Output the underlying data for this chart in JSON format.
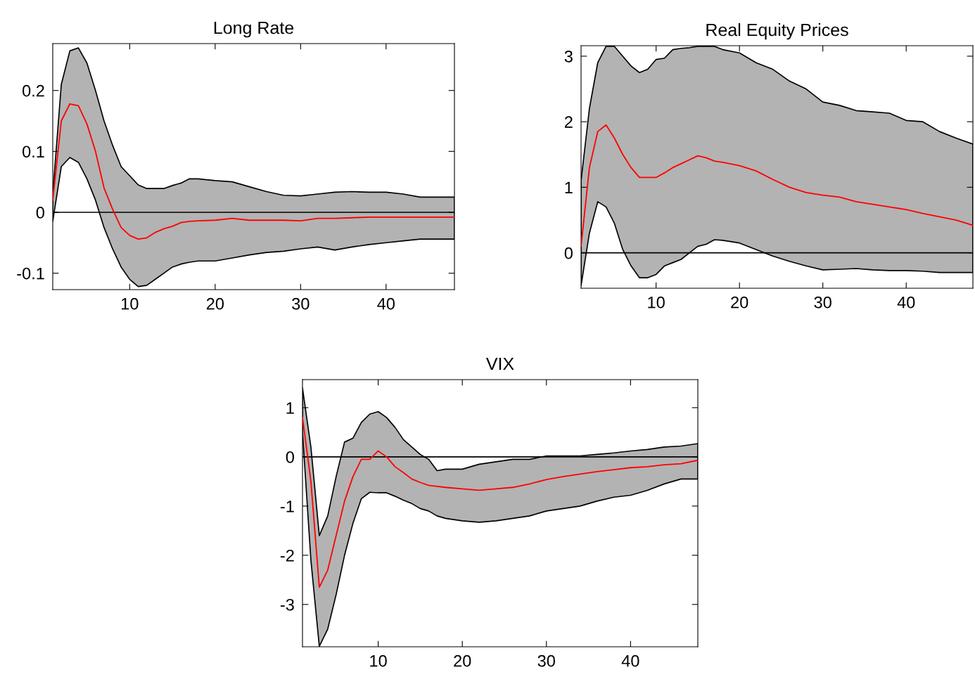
{
  "chart_data": [
    {
      "type": "line",
      "title": "Long Rate",
      "xlim": [
        1,
        48
      ],
      "xticks": [
        10,
        20,
        30,
        40
      ],
      "ylim": [
        -0.127,
        0.277
      ],
      "yticks": [
        -0.1,
        0,
        0.1,
        0.2
      ],
      "x": [
        1,
        2,
        3,
        4,
        5,
        6,
        7,
        8,
        9,
        10,
        11,
        12,
        13,
        14,
        15,
        16,
        17,
        18,
        20,
        22,
        24,
        26,
        28,
        30,
        32,
        34,
        36,
        38,
        40,
        42,
        44,
        46,
        48
      ],
      "series": [
        {
          "color": "#ff0000",
          "values": [
            0.02,
            0.15,
            0.178,
            0.175,
            0.145,
            0.1,
            0.04,
            0.005,
            -0.025,
            -0.038,
            -0.044,
            -0.042,
            -0.033,
            -0.027,
            -0.023,
            -0.017,
            -0.015,
            -0.014,
            -0.013,
            -0.01,
            -0.013,
            -0.013,
            -0.013,
            -0.014,
            -0.01,
            -0.01,
            -0.009,
            -0.008,
            -0.008,
            -0.008,
            -0.008,
            -0.008,
            -0.008
          ],
          "upper": [
            0.03,
            0.21,
            0.265,
            0.27,
            0.245,
            0.2,
            0.15,
            0.11,
            0.075,
            0.06,
            0.045,
            0.039,
            0.039,
            0.039,
            0.044,
            0.048,
            0.055,
            0.055,
            0.052,
            0.05,
            0.042,
            0.034,
            0.028,
            0.027,
            0.03,
            0.033,
            0.034,
            0.033,
            0.033,
            0.03,
            0.025,
            0.025,
            0.025
          ],
          "lower": [
            -0.015,
            0.075,
            0.09,
            0.082,
            0.055,
            0.02,
            -0.025,
            -0.06,
            -0.09,
            -0.11,
            -0.122,
            -0.12,
            -0.11,
            -0.1,
            -0.09,
            -0.085,
            -0.082,
            -0.08,
            -0.08,
            -0.075,
            -0.07,
            -0.066,
            -0.064,
            -0.06,
            -0.057,
            -0.062,
            -0.057,
            -0.053,
            -0.05,
            -0.047,
            -0.044,
            -0.044,
            -0.044
          ]
        }
      ],
      "ref_lines": [
        {
          "axis": "y",
          "value": 0,
          "color": "#000000"
        }
      ]
    },
    {
      "type": "line",
      "title": "Real Equity Prices",
      "xlim": [
        1,
        48
      ],
      "xticks": [
        10,
        20,
        30,
        40
      ],
      "ylim": [
        -0.54,
        3.16
      ],
      "yticks": [
        0,
        1,
        2,
        3
      ],
      "x": [
        1,
        2,
        3,
        4,
        5,
        6,
        7,
        8,
        9,
        10,
        11,
        12,
        13,
        14,
        15,
        16,
        17,
        18,
        20,
        22,
        24,
        26,
        28,
        30,
        32,
        34,
        36,
        38,
        40,
        42,
        44,
        46,
        48
      ],
      "series": [
        {
          "color": "#ff0000",
          "values": [
            0.1,
            1.3,
            1.85,
            1.95,
            1.75,
            1.5,
            1.3,
            1.15,
            1.15,
            1.15,
            1.22,
            1.3,
            1.36,
            1.42,
            1.48,
            1.45,
            1.4,
            1.38,
            1.33,
            1.25,
            1.12,
            1.0,
            0.92,
            0.88,
            0.85,
            0.78,
            0.74,
            0.7,
            0.66,
            0.6,
            0.55,
            0.5,
            0.42
          ],
          "upper": [
            1.1,
            2.2,
            2.9,
            3.15,
            3.15,
            3.0,
            2.85,
            2.75,
            2.8,
            2.95,
            2.97,
            3.1,
            3.12,
            3.13,
            3.15,
            3.15,
            3.15,
            3.1,
            3.05,
            2.9,
            2.8,
            2.62,
            2.5,
            2.3,
            2.25,
            2.17,
            2.15,
            2.13,
            2.02,
            2.0,
            1.85,
            1.75,
            1.66
          ],
          "lower": [
            -0.5,
            0.3,
            0.78,
            0.7,
            0.45,
            0.05,
            -0.2,
            -0.38,
            -0.38,
            -0.33,
            -0.2,
            -0.15,
            -0.1,
            0.0,
            0.1,
            0.13,
            0.2,
            0.19,
            0.15,
            0.05,
            -0.05,
            -0.13,
            -0.2,
            -0.26,
            -0.25,
            -0.24,
            -0.26,
            -0.27,
            -0.27,
            -0.28,
            -0.3,
            -0.3,
            -0.3
          ]
        }
      ],
      "ref_lines": [
        {
          "axis": "y",
          "value": 0,
          "color": "#000000"
        }
      ]
    },
    {
      "type": "line",
      "title": "VIX",
      "xlim": [
        1,
        48
      ],
      "xticks": [
        10,
        20,
        30,
        40
      ],
      "ylim": [
        -3.86,
        1.57
      ],
      "yticks": [
        -3,
        -2,
        -1,
        0,
        1
      ],
      "x": [
        1,
        2,
        3,
        4,
        5,
        6,
        7,
        8,
        9,
        10,
        11,
        12,
        13,
        14,
        15,
        16,
        17,
        18,
        20,
        22,
        24,
        26,
        28,
        30,
        32,
        34,
        36,
        38,
        40,
        42,
        44,
        46,
        48
      ],
      "series": [
        {
          "color": "#ff0000",
          "values": [
            0.8,
            -0.5,
            -2.65,
            -2.3,
            -1.6,
            -0.9,
            -0.4,
            -0.05,
            -0.05,
            0.12,
            0.0,
            -0.2,
            -0.32,
            -0.45,
            -0.52,
            -0.58,
            -0.6,
            -0.62,
            -0.65,
            -0.68,
            -0.65,
            -0.62,
            -0.55,
            -0.46,
            -0.4,
            -0.35,
            -0.3,
            -0.26,
            -0.22,
            -0.2,
            -0.16,
            -0.14,
            -0.07
          ],
          "upper": [
            1.4,
            0.2,
            -1.6,
            -1.2,
            -0.4,
            0.3,
            0.38,
            0.7,
            0.87,
            0.92,
            0.8,
            0.6,
            0.35,
            0.2,
            0.05,
            -0.05,
            -0.28,
            -0.25,
            -0.25,
            -0.15,
            -0.1,
            -0.05,
            -0.05,
            0.02,
            0.02,
            0.02,
            0.05,
            0.08,
            0.12,
            0.15,
            0.2,
            0.22,
            0.27
          ],
          "lower": [
            0.5,
            -2.1,
            -3.85,
            -3.5,
            -2.8,
            -2.0,
            -1.35,
            -0.85,
            -0.72,
            -0.73,
            -0.73,
            -0.8,
            -0.88,
            -0.95,
            -1.05,
            -1.1,
            -1.2,
            -1.25,
            -1.3,
            -1.33,
            -1.3,
            -1.25,
            -1.2,
            -1.1,
            -1.05,
            -1.0,
            -0.9,
            -0.82,
            -0.78,
            -0.68,
            -0.55,
            -0.45,
            -0.45
          ]
        }
      ],
      "ref_lines": [
        {
          "axis": "y",
          "value": 0,
          "color": "#000000"
        }
      ]
    }
  ]
}
